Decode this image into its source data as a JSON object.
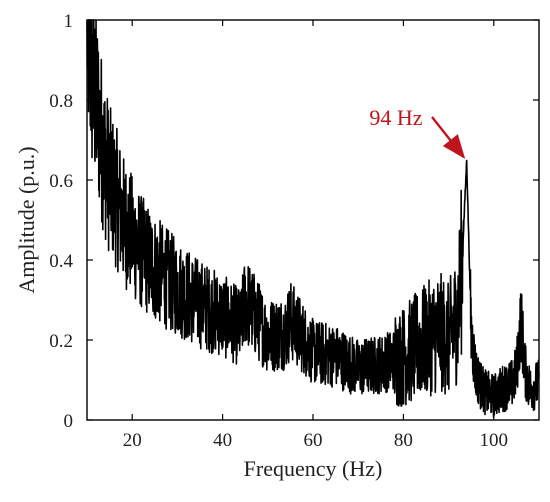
{
  "chart_data": {
    "type": "line",
    "title": "",
    "xlabel": "Frequency (Hz)",
    "ylabel": "Amplitude (p.u.)",
    "xlim": [
      10,
      110
    ],
    "ylim": [
      0,
      1
    ],
    "x_ticks": [
      20,
      40,
      60,
      80,
      100
    ],
    "y_ticks": [
      0,
      0.2,
      0.4,
      0.6,
      0.8,
      1
    ],
    "y_tick_labels": [
      "0",
      "0.2",
      "0.4",
      "0.6",
      "0.8",
      "1"
    ],
    "grid": false,
    "line_color": "#000000",
    "series": [
      {
        "x": [
          10,
          11,
          12,
          13,
          14,
          15,
          16,
          17,
          18,
          20,
          22,
          25,
          30,
          35,
          40,
          44,
          45,
          50,
          54,
          55,
          60,
          65,
          70,
          75,
          80,
          85,
          88,
          90,
          92,
          93,
          94,
          95,
          96,
          97,
          98,
          100,
          102,
          104,
          105,
          106,
          107,
          108,
          110
        ],
        "y": [
          1.0,
          0.86,
          0.8,
          0.72,
          0.65,
          0.6,
          0.57,
          0.54,
          0.5,
          0.46,
          0.42,
          0.38,
          0.33,
          0.29,
          0.26,
          0.23,
          0.3,
          0.21,
          0.22,
          0.25,
          0.17,
          0.16,
          0.13,
          0.14,
          0.16,
          0.2,
          0.22,
          0.2,
          0.26,
          0.4,
          0.65,
          0.22,
          0.12,
          0.09,
          0.07,
          0.06,
          0.08,
          0.09,
          0.12,
          0.25,
          0.12,
          0.08,
          0.09
        ]
      }
    ],
    "annotations": [
      {
        "text": "94 Hz",
        "color": "#c0141c",
        "x": 94,
        "y": 0.65
      }
    ]
  }
}
